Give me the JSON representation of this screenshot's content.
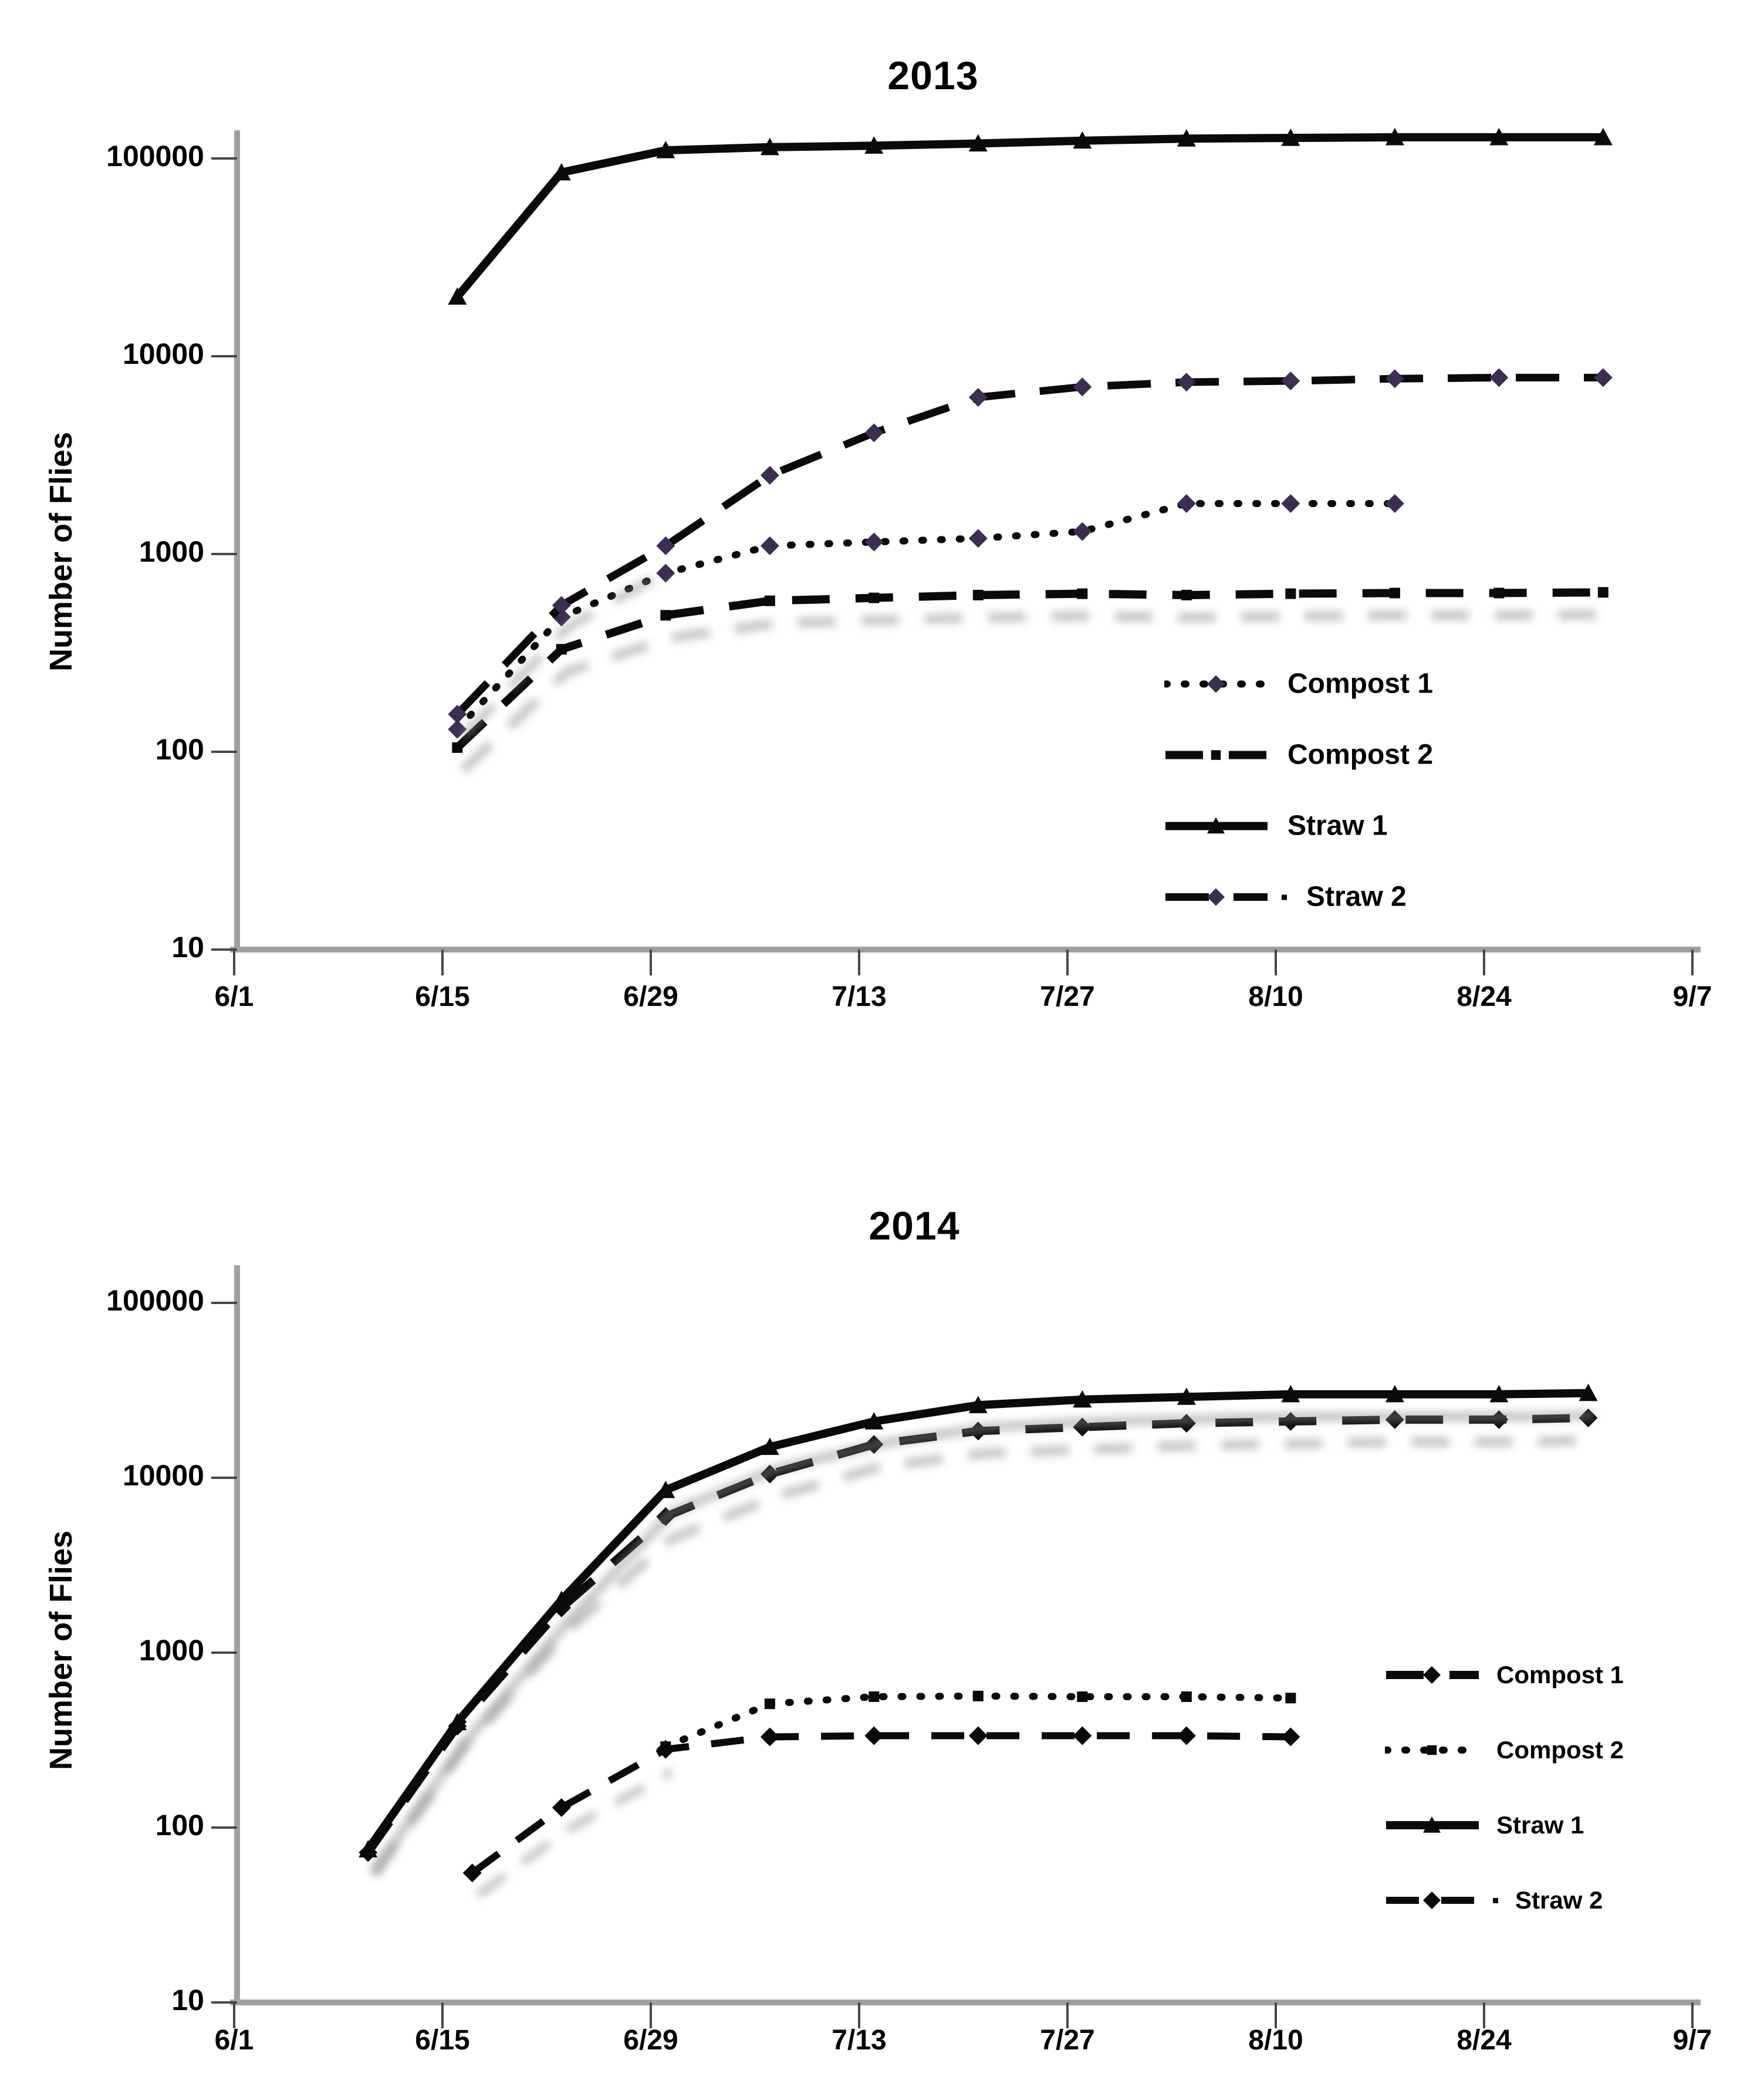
{
  "figure_background": "#ffffff",
  "colors": {
    "line": "#0a0a0a",
    "axis_gray": "#a0a0a0",
    "tick_gray": "#474747",
    "shadow_gray": "#8d8d8d",
    "purple_marker": "#3b2e52"
  },
  "chart_data": [
    {
      "type": "line",
      "title": "2013",
      "ylabel": "Number of Flies",
      "y_axis": {
        "scale": "log",
        "ylim": [
          10,
          100000
        ],
        "tick_labels": [
          "10",
          "100",
          "1000",
          "10000",
          "100000"
        ]
      },
      "x_axis": {
        "tick_labels": [
          "6/1",
          "6/15",
          "6/29",
          "7/13",
          "7/27",
          "8/10",
          "8/24",
          "9/7"
        ]
      },
      "legend": {
        "position": "inside-right",
        "entries": [
          "Compost 1",
          "Compost 2",
          "Straw 1",
          "Straw 2"
        ]
      },
      "series": [
        {
          "name": "Compost 1",
          "line_style": "dotted",
          "marker": "diamond",
          "marker_color": "#3b2e52",
          "dates": [
            "6/16",
            "6/23",
            "6/30",
            "7/7",
            "7/14",
            "7/21",
            "7/28",
            "8/4",
            "8/11",
            "8/18"
          ],
          "x_days": [
            15,
            22,
            29,
            36,
            43,
            50,
            57,
            64,
            71,
            78
          ],
          "values": [
            130,
            480,
            800,
            1100,
            1150,
            1200,
            1300,
            1800,
            1800,
            1800
          ]
        },
        {
          "name": "Compost 2",
          "line_style": "dashed",
          "marker": "square",
          "marker_color": "#0a0a0a",
          "shadow": "full",
          "dates": [
            "6/16",
            "6/23",
            "6/30",
            "7/7",
            "7/14",
            "7/21",
            "7/28",
            "8/4",
            "8/11",
            "8/18",
            "8/25",
            "9/1"
          ],
          "x_days": [
            15,
            22,
            29,
            36,
            43,
            50,
            57,
            64,
            71,
            78,
            85,
            92
          ],
          "values": [
            105,
            330,
            490,
            580,
            600,
            620,
            630,
            620,
            630,
            635,
            635,
            640
          ]
        },
        {
          "name": "Straw 1",
          "line_style": "solid",
          "marker": "triangle",
          "marker_color": "#0a0a0a",
          "dates": [
            "6/16",
            "6/23",
            "6/30",
            "7/7",
            "7/14",
            "7/21",
            "7/28",
            "8/4",
            "8/11",
            "8/18",
            "8/25",
            "9/1"
          ],
          "x_days": [
            15,
            22,
            29,
            36,
            43,
            50,
            57,
            64,
            71,
            78,
            85,
            92
          ],
          "values": [
            20000,
            85000,
            110000,
            114000,
            116000,
            119000,
            123000,
            126000,
            127000,
            128000,
            128000,
            128000
          ]
        },
        {
          "name": "Straw 2",
          "line_style": "dash-dot",
          "marker": "diamond",
          "marker_color": "#3b2e52",
          "shadow": "start",
          "legend_dot": true,
          "dates": [
            "6/16",
            "6/23",
            "6/30",
            "7/7",
            "7/14",
            "7/21",
            "7/28",
            "8/4",
            "8/11",
            "8/18",
            "8/25",
            "9/1"
          ],
          "x_days": [
            15,
            22,
            29,
            36,
            43,
            50,
            57,
            64,
            71,
            78,
            85,
            92
          ],
          "values": [
            155,
            550,
            1100,
            2500,
            4100,
            6200,
            7000,
            7400,
            7500,
            7700,
            7800,
            7800
          ]
        }
      ]
    },
    {
      "type": "line",
      "title": "2014",
      "ylabel": "Number of Flies",
      "y_axis": {
        "scale": "log",
        "ylim": [
          10,
          100000
        ],
        "tick_labels": [
          "10",
          "100",
          "1000",
          "10000",
          "100000"
        ]
      },
      "x_axis": {
        "tick_labels": [
          "6/1",
          "6/15",
          "6/29",
          "7/13",
          "7/27",
          "8/10",
          "8/24",
          "9/7"
        ]
      },
      "legend": {
        "position": "inside-right",
        "entries": [
          "Compost 1",
          "Compost 2",
          "Straw 1",
          "Straw 2"
        ]
      },
      "series": [
        {
          "name": "Compost 1",
          "line_style": "dashed",
          "marker": "diamond",
          "marker_color": "#0a0a0a",
          "shadow": "full",
          "dates": [
            "6/10",
            "6/16",
            "6/23",
            "6/30",
            "7/7",
            "7/14",
            "7/21",
            "7/28",
            "8/4",
            "8/11",
            "8/18",
            "8/25",
            "8/31"
          ],
          "x_days": [
            9,
            15,
            22,
            29,
            36,
            43,
            50,
            57,
            64,
            71,
            78,
            85,
            91
          ],
          "values": [
            72,
            380,
            1800,
            6000,
            10500,
            15500,
            18500,
            19500,
            20500,
            21000,
            21500,
            21500,
            22000
          ]
        },
        {
          "name": "Compost 2",
          "line_style": "dotted",
          "marker": "square",
          "marker_color": "#0a0a0a",
          "dates": [
            "6/30",
            "7/7",
            "7/14",
            "7/21",
            "7/28",
            "8/4",
            "8/11"
          ],
          "x_days": [
            29,
            36,
            43,
            50,
            57,
            64,
            71
          ],
          "values": [
            290,
            510,
            560,
            565,
            560,
            560,
            550
          ]
        },
        {
          "name": "Straw 1",
          "line_style": "solid",
          "marker": "triangle",
          "marker_color": "#0a0a0a",
          "shadow": "full",
          "dates": [
            "6/10",
            "6/16",
            "6/23",
            "6/30",
            "7/7",
            "7/14",
            "7/21",
            "7/28",
            "8/4",
            "8/11",
            "8/18",
            "8/25",
            "8/31"
          ],
          "x_days": [
            9,
            15,
            22,
            29,
            36,
            43,
            50,
            57,
            64,
            71,
            78,
            85,
            91
          ],
          "values": [
            75,
            400,
            2000,
            8500,
            15000,
            21000,
            26000,
            28000,
            29000,
            30000,
            30000,
            30000,
            30500
          ]
        },
        {
          "name": "Straw 2",
          "line_style": "dashed-short",
          "marker": "diamond",
          "marker_color": "#0a0a0a",
          "shadow": "start",
          "legend_dot": true,
          "dates": [
            "6/17",
            "6/23",
            "6/30",
            "7/7",
            "7/14",
            "7/21",
            "7/28",
            "8/4",
            "8/11"
          ],
          "x_days": [
            16,
            22,
            29,
            36,
            43,
            50,
            57,
            64,
            71
          ],
          "values": [
            55,
            130,
            280,
            330,
            335,
            335,
            335,
            335,
            330
          ]
        }
      ]
    }
  ]
}
